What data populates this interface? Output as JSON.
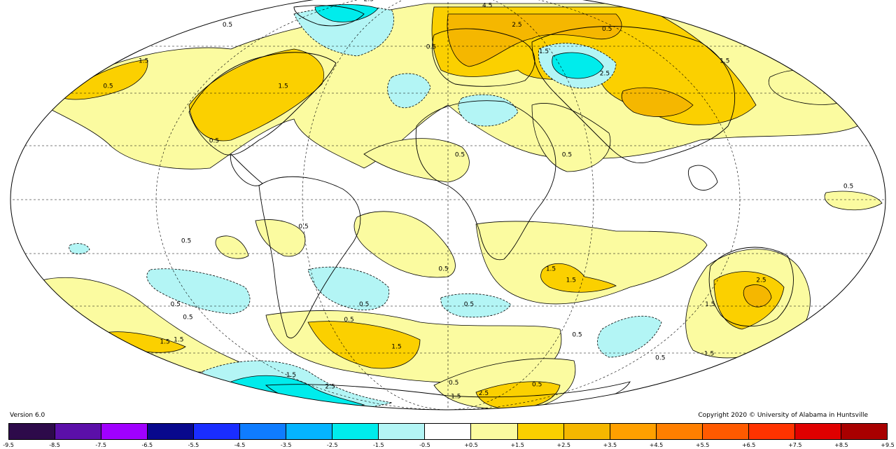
{
  "version_label": "Version 6.0",
  "copyright_label": "Copyright 2020 © University of Alabama in Huntsville",
  "colorbar": {
    "colors": [
      "#2d0a4a",
      "#5b0fa8",
      "#a000ff",
      "#08088c",
      "#1a2dff",
      "#0f7cff",
      "#05b4ff",
      "#00ecec",
      "#b3f5f5",
      "#ffffff",
      "#fbfba0",
      "#fbd000",
      "#f5b700",
      "#ffa000",
      "#ff7f00",
      "#ff5a00",
      "#ff3300",
      "#e00000",
      "#a80000"
    ],
    "ticks": [
      "-9.5",
      "-8.5",
      "-7.5",
      "-6.5",
      "-5.5",
      "-4.5",
      "-3.5",
      "-2.5",
      "-1.5",
      "-0.5",
      "+0.5",
      "+1.5",
      "+2.5",
      "+3.5",
      "+4.5",
      "+5.5",
      "+6.5",
      "+7.5",
      "+8.5",
      "+9.5"
    ]
  },
  "contour_labels": [
    {
      "text": "2.5",
      "lon": -100,
      "lat": 80
    },
    {
      "text": "0.5",
      "lon": -160,
      "lat": 66
    },
    {
      "text": "1.5",
      "lon": -165,
      "lat": 50
    },
    {
      "text": "0.5",
      "lon": -165,
      "lat": 40
    },
    {
      "text": "1.5",
      "lon": -80,
      "lat": 40
    },
    {
      "text": "0.5",
      "lon": -100,
      "lat": 20
    },
    {
      "text": "0.5",
      "lon": -10,
      "lat": 56
    },
    {
      "text": "4.5",
      "lon": 40,
      "lat": 76
    },
    {
      "text": "2.5",
      "lon": 50,
      "lat": 66
    },
    {
      "text": "1.5",
      "lon": 55,
      "lat": 54
    },
    {
      "text": "2.5",
      "lon": 80,
      "lat": 45
    },
    {
      "text": "0.5",
      "lon": 110,
      "lat": 64
    },
    {
      "text": "1.5",
      "lon": 150,
      "lat": 50
    },
    {
      "text": "0.5",
      "lon": 5,
      "lat": 15
    },
    {
      "text": "0.5",
      "lon": 50,
      "lat": 15
    },
    {
      "text": "0.5",
      "lon": 165,
      "lat": 4
    },
    {
      "text": "0.5",
      "lon": -60,
      "lat": -10
    },
    {
      "text": "0.5",
      "lon": -110,
      "lat": -15
    },
    {
      "text": "0.5",
      "lon": -2,
      "lat": -25
    },
    {
      "text": "1.5",
      "lon": 45,
      "lat": -25
    },
    {
      "text": "1.5",
      "lon": 55,
      "lat": -29
    },
    {
      "text": "0.5",
      "lon": -130,
      "lat": -38
    },
    {
      "text": "0.5",
      "lon": -130,
      "lat": -43
    },
    {
      "text": "0.5",
      "lon": -40,
      "lat": -38
    },
    {
      "text": "0.5",
      "lon": -50,
      "lat": -44
    },
    {
      "text": "0.5",
      "lon": 10,
      "lat": -38
    },
    {
      "text": "2.5",
      "lon": 140,
      "lat": -29
    },
    {
      "text": "1.5",
      "lon": 125,
      "lat": -38
    },
    {
      "text": "1.5",
      "lon": -160,
      "lat": -53
    },
    {
      "text": "1.5",
      "lon": -150,
      "lat": -52
    },
    {
      "text": "1.5",
      "lon": -30,
      "lat": -55
    },
    {
      "text": "0.5",
      "lon": 70,
      "lat": -50
    },
    {
      "text": "0.5",
      "lon": 135,
      "lat": -60
    },
    {
      "text": "1.5",
      "lon": 160,
      "lat": -58
    },
    {
      "text": "1.5",
      "lon": -120,
      "lat": -68
    },
    {
      "text": "2.5",
      "lon": -110,
      "lat": -74
    },
    {
      "text": "0.5",
      "lon": 5,
      "lat": -72
    },
    {
      "text": "1.5",
      "lon": 10,
      "lat": -80
    },
    {
      "text": "2.5",
      "lon": 40,
      "lat": -78
    },
    {
      "text": "0.5",
      "lon": 80,
      "lat": -73
    }
  ]
}
